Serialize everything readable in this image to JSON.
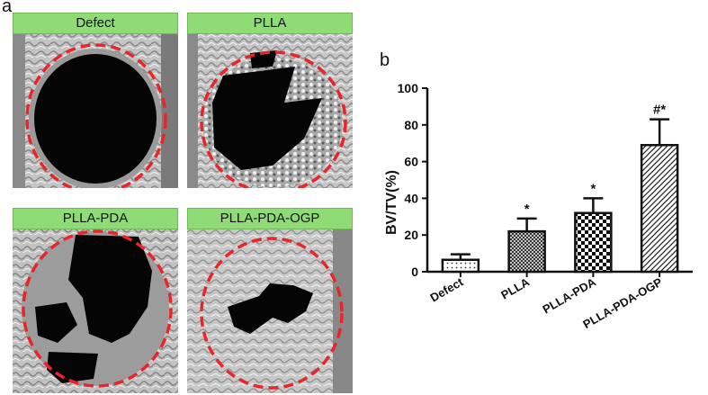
{
  "panel_a_letter": "a",
  "panel_b_letter": "b",
  "images": [
    {
      "label": "Defect"
    },
    {
      "label": "PLLA"
    },
    {
      "label": "PLLA-PDA"
    },
    {
      "label": "PLLA-PDA-OGP"
    }
  ],
  "colors": {
    "label_green": "#8fdc76",
    "circle_red": "#e8262a",
    "bone_gray": "#b9b9b9",
    "void_black": "#050505"
  },
  "chart_data": {
    "type": "bar",
    "categories": [
      "Defect",
      "PLLA",
      "PLLA-PDA",
      "PLLA-PDA-OGP"
    ],
    "values": [
      6.5,
      22,
      32,
      69
    ],
    "errors": [
      3,
      7,
      8,
      14
    ],
    "significance": [
      "",
      "*",
      "*",
      "#*"
    ],
    "patterns": [
      "dots",
      "crosshatch",
      "checker",
      "diagonal"
    ],
    "ylabel": "BV/TV(%)",
    "xlabel": "",
    "ylim": [
      0,
      100
    ],
    "yticks": [
      0,
      20,
      40,
      60,
      80,
      100
    ],
    "grid": false
  }
}
